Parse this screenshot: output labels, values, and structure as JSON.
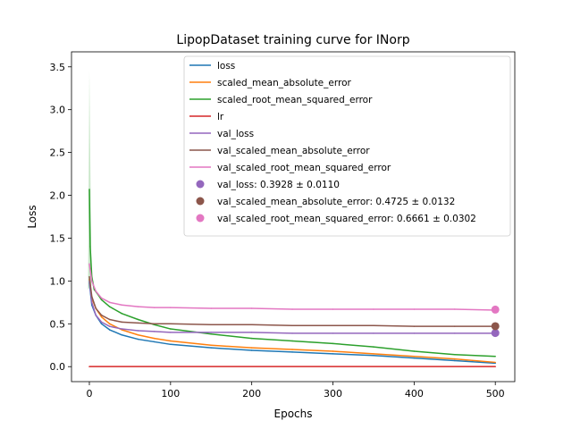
{
  "chart_data": {
    "type": "line",
    "title": "LipopDataset training curve for INorp",
    "xlabel": "Epochs",
    "ylabel": "Loss",
    "xlim": [
      -22,
      524
    ],
    "ylim": [
      -0.175,
      3.675
    ],
    "xticks": [
      0,
      100,
      200,
      300,
      400,
      500
    ],
    "xtick_labels": [
      "0",
      "100",
      "200",
      "300",
      "400",
      "500"
    ],
    "yticks": [
      0.0,
      0.5,
      1.0,
      1.5,
      2.0,
      2.5,
      3.0,
      3.5
    ],
    "ytick_labels": [
      "0.0",
      "0.5",
      "1.0",
      "1.5",
      "2.0",
      "2.5",
      "3.0",
      "3.5"
    ],
    "grid": false,
    "legend_position": "top-right",
    "series": [
      {
        "name": "loss",
        "color": "#1f77b4",
        "points": [
          [
            0,
            0.98
          ],
          [
            3,
            0.72
          ],
          [
            8,
            0.6
          ],
          [
            15,
            0.5
          ],
          [
            25,
            0.43
          ],
          [
            40,
            0.37
          ],
          [
            60,
            0.32
          ],
          [
            80,
            0.29
          ],
          [
            100,
            0.26
          ],
          [
            150,
            0.22
          ],
          [
            200,
            0.19
          ],
          [
            250,
            0.17
          ],
          [
            300,
            0.15
          ],
          [
            350,
            0.13
          ],
          [
            400,
            0.1
          ],
          [
            450,
            0.07
          ],
          [
            500,
            0.04
          ]
        ]
      },
      {
        "name": "scaled_mean_absolute_error",
        "color": "#ff7f0e",
        "points": [
          [
            0,
            1.02
          ],
          [
            3,
            0.8
          ],
          [
            8,
            0.68
          ],
          [
            15,
            0.58
          ],
          [
            25,
            0.5
          ],
          [
            40,
            0.43
          ],
          [
            60,
            0.37
          ],
          [
            80,
            0.33
          ],
          [
            100,
            0.3
          ],
          [
            150,
            0.25
          ],
          [
            200,
            0.22
          ],
          [
            250,
            0.2
          ],
          [
            300,
            0.18
          ],
          [
            350,
            0.15
          ],
          [
            400,
            0.12
          ],
          [
            450,
            0.09
          ],
          [
            500,
            0.05
          ]
        ]
      },
      {
        "name": "scaled_root_mean_squared_error",
        "color": "#2ca02c",
        "points": [
          [
            0,
            2.07
          ],
          [
            1,
            1.4
          ],
          [
            3,
            1.05
          ],
          [
            6,
            0.9
          ],
          [
            10,
            0.85
          ],
          [
            15,
            0.78
          ],
          [
            25,
            0.7
          ],
          [
            40,
            0.62
          ],
          [
            60,
            0.55
          ],
          [
            80,
            0.49
          ],
          [
            100,
            0.44
          ],
          [
            150,
            0.38
          ],
          [
            200,
            0.33
          ],
          [
            250,
            0.3
          ],
          [
            300,
            0.27
          ],
          [
            350,
            0.23
          ],
          [
            400,
            0.18
          ],
          [
            450,
            0.14
          ],
          [
            500,
            0.12
          ]
        ]
      },
      {
        "name": "lr",
        "color": "#d62728",
        "points": [
          [
            0,
            0.001
          ],
          [
            500,
            0.001
          ]
        ]
      },
      {
        "name": "val_loss",
        "color": "#9467bd",
        "points": [
          [
            0,
            1.0
          ],
          [
            3,
            0.75
          ],
          [
            8,
            0.6
          ],
          [
            15,
            0.52
          ],
          [
            25,
            0.47
          ],
          [
            40,
            0.44
          ],
          [
            60,
            0.42
          ],
          [
            80,
            0.41
          ],
          [
            100,
            0.4
          ],
          [
            150,
            0.4
          ],
          [
            200,
            0.4
          ],
          [
            250,
            0.39
          ],
          [
            300,
            0.39
          ],
          [
            350,
            0.39
          ],
          [
            400,
            0.39
          ],
          [
            450,
            0.39
          ],
          [
            500,
            0.39
          ]
        ]
      },
      {
        "name": "val_scaled_mean_absolute_error",
        "color": "#8c564b",
        "points": [
          [
            0,
            1.05
          ],
          [
            3,
            0.82
          ],
          [
            8,
            0.68
          ],
          [
            15,
            0.6
          ],
          [
            25,
            0.55
          ],
          [
            40,
            0.52
          ],
          [
            60,
            0.51
          ],
          [
            80,
            0.5
          ],
          [
            100,
            0.5
          ],
          [
            150,
            0.49
          ],
          [
            200,
            0.49
          ],
          [
            250,
            0.48
          ],
          [
            300,
            0.48
          ],
          [
            350,
            0.48
          ],
          [
            400,
            0.47
          ],
          [
            450,
            0.47
          ],
          [
            500,
            0.47
          ]
        ]
      },
      {
        "name": "val_scaled_root_mean_squared_error",
        "color": "#e377c2",
        "points": [
          [
            0,
            1.2
          ],
          [
            3,
            1.0
          ],
          [
            8,
            0.88
          ],
          [
            15,
            0.8
          ],
          [
            25,
            0.75
          ],
          [
            40,
            0.72
          ],
          [
            60,
            0.7
          ],
          [
            80,
            0.69
          ],
          [
            100,
            0.69
          ],
          [
            150,
            0.68
          ],
          [
            200,
            0.68
          ],
          [
            250,
            0.67
          ],
          [
            300,
            0.67
          ],
          [
            350,
            0.67
          ],
          [
            400,
            0.67
          ],
          [
            450,
            0.67
          ],
          [
            500,
            0.66
          ]
        ]
      }
    ],
    "shaded_spike": {
      "series": "scaled_root_mean_squared_error",
      "x": 0,
      "y": 3.45
    },
    "final_markers": [
      {
        "label": "val_loss: 0.3928 ± 0.0110",
        "x": 500,
        "y": 0.3928,
        "color": "#9467bd"
      },
      {
        "label": "val_scaled_mean_absolute_error: 0.4725 ± 0.0132",
        "x": 500,
        "y": 0.4725,
        "color": "#8c564b"
      },
      {
        "label": "val_scaled_root_mean_squared_error: 0.6661 ± 0.0302",
        "x": 500,
        "y": 0.6661,
        "color": "#e377c2"
      }
    ]
  }
}
